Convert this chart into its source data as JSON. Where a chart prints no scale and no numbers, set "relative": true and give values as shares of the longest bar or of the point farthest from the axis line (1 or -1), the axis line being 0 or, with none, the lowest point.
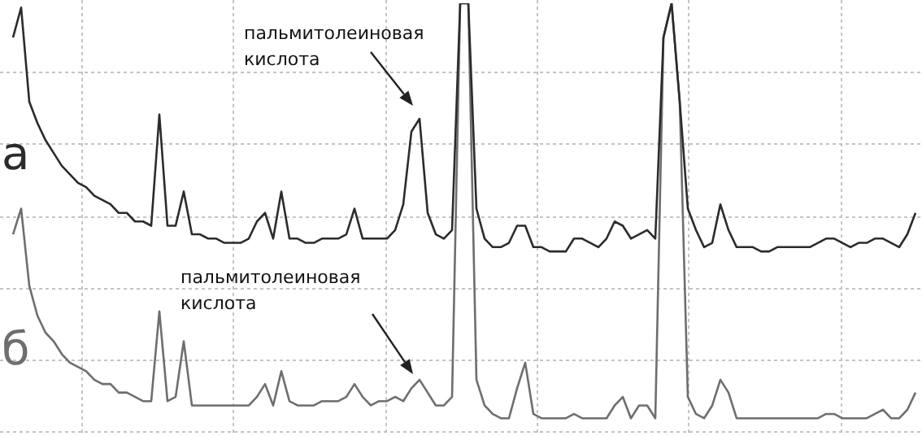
{
  "chart_data": {
    "type": "line",
    "relative": true,
    "grid": true,
    "categories": [
      null,
      null,
      null,
      null,
      null,
      null,
      null,
      null,
      null,
      null,
      null,
      null,
      null,
      null,
      null,
      null,
      null,
      null,
      null,
      null,
      null,
      null,
      null,
      null,
      null,
      null,
      null,
      null,
      null,
      null,
      null,
      null,
      null,
      null,
      null,
      null,
      null,
      null,
      null,
      null,
      null,
      null,
      null,
      null,
      null,
      null,
      null,
      null,
      null,
      null,
      null,
      null,
      null,
      null,
      null,
      null,
      null,
      null,
      null,
      null,
      null,
      null,
      null,
      null,
      null,
      null,
      null,
      null,
      null,
      null,
      null,
      null,
      null,
      null,
      null,
      null,
      null,
      null,
      null,
      null,
      null,
      null,
      null,
      null,
      null,
      null,
      null,
      null,
      null,
      null,
      null,
      null,
      null,
      null,
      null,
      null,
      null,
      null,
      null,
      null,
      null,
      null,
      null,
      null,
      null,
      null,
      null,
      null,
      null,
      null,
      null,
      null
    ],
    "series": [
      {
        "name": "а",
        "color": "#2b2b2b",
        "values": [
          0.92,
          0.99,
          0.77,
          0.72,
          0.68,
          0.65,
          0.62,
          0.6,
          0.58,
          0.57,
          0.55,
          0.54,
          0.53,
          0.51,
          0.51,
          0.49,
          0.49,
          0.48,
          0.74,
          0.48,
          0.48,
          0.56,
          0.46,
          0.46,
          0.45,
          0.45,
          0.44,
          0.44,
          0.44,
          0.45,
          0.49,
          0.51,
          0.45,
          0.56,
          0.45,
          0.45,
          0.44,
          0.44,
          0.45,
          0.45,
          0.45,
          0.46,
          0.52,
          0.45,
          0.45,
          0.45,
          0.45,
          0.47,
          0.53,
          0.7,
          0.73,
          0.51,
          0.46,
          0.45,
          0.47,
          1,
          1,
          0.52,
          0.45,
          0.43,
          0.43,
          0.44,
          0.48,
          0.48,
          0.43,
          0.43,
          0.42,
          0.42,
          0.42,
          0.45,
          0.45,
          0.44,
          0.43,
          0.45,
          0.49,
          0.48,
          0.45,
          0.46,
          0.47,
          0.45,
          0.92,
          1,
          0.77,
          0.52,
          0.47,
          0.43,
          0.44,
          0.53,
          0.47,
          0.43,
          0.43,
          0.43,
          0.42,
          0.42,
          0.43,
          0.43,
          0.43,
          0.43,
          0.43,
          0.44,
          0.45,
          0.45,
          0.44,
          0.43,
          0.44,
          0.44,
          0.45,
          0.45,
          0.44,
          0.43,
          0.46,
          0.51
        ]
      },
      {
        "name": "б",
        "color": "#6e6e6e",
        "values": [
          0.46,
          0.52,
          0.34,
          0.27,
          0.23,
          0.21,
          0.18,
          0.16,
          0.15,
          0.14,
          0.12,
          0.11,
          0.11,
          0.09,
          0.09,
          0.08,
          0.07,
          0.07,
          0.28,
          0.07,
          0.08,
          0.21,
          0.06,
          0.06,
          0.06,
          0.06,
          0.06,
          0.06,
          0.06,
          0.06,
          0.08,
          0.11,
          0.06,
          0.14,
          0.07,
          0.06,
          0.06,
          0.06,
          0.07,
          0.07,
          0.07,
          0.08,
          0.11,
          0.08,
          0.06,
          0.07,
          0.07,
          0.08,
          0.07,
          0.1,
          0.12,
          0.09,
          0.06,
          0.06,
          0.08,
          1,
          1,
          0.12,
          0.06,
          0.04,
          0.03,
          0.03,
          0.1,
          0.16,
          0.04,
          0.03,
          0.03,
          0.03,
          0.03,
          0.04,
          0.03,
          0.03,
          0.03,
          0.03,
          0.06,
          0.08,
          0.03,
          0.06,
          0.06,
          0.03,
          0.92,
          1,
          0.77,
          0.08,
          0.04,
          0.03,
          0.06,
          0.12,
          0.09,
          0.03,
          0.03,
          0.03,
          0.03,
          0.03,
          0.03,
          0.03,
          0.03,
          0.03,
          0.03,
          0.03,
          0.04,
          0.04,
          0.03,
          0.03,
          0.03,
          0.03,
          0.04,
          0.05,
          0.03,
          0.03,
          0.05,
          0.09
        ]
      }
    ],
    "annotations": [
      "пальмитолеиновая кислота",
      "пальмитолеиновая кислота"
    ]
  }
}
